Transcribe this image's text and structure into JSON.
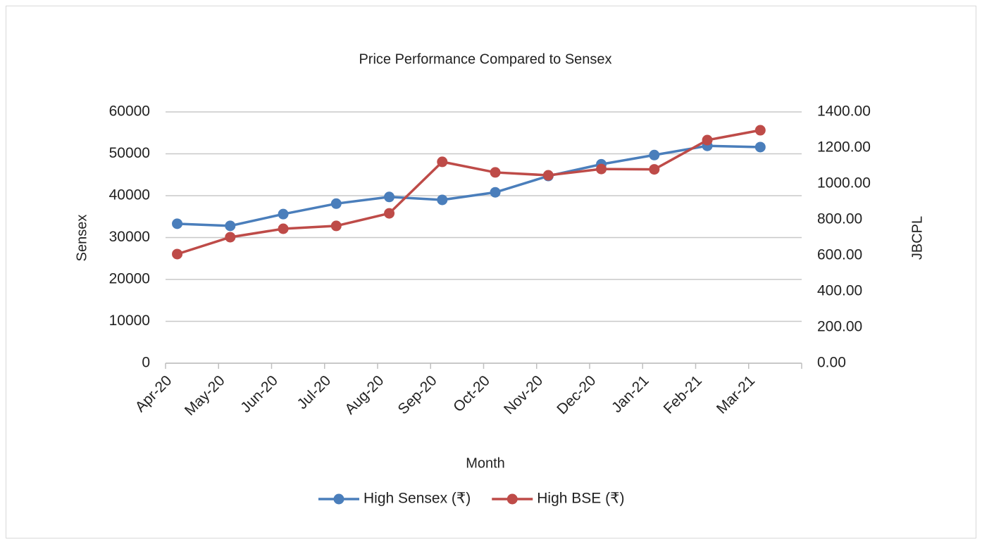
{
  "chart_data": {
    "type": "line",
    "title": "Price Performance Compared to Sensex",
    "x_label": "Month",
    "y_label": "Sensex",
    "y2_label": "JBCPL",
    "categories": [
      "Apr-20",
      "May-20",
      "Jun-20",
      "Jul-20",
      "Aug-20",
      "Sep-20",
      "Oct-20",
      "Nov-20",
      "Dec-20",
      "Jan-21",
      "Feb-21",
      "Mar-21"
    ],
    "series": [
      {
        "name": "High Sensex (₹)",
        "color": "#4a7ebb",
        "values": [
          33300,
          32800,
          35600,
          38100,
          39700,
          39000,
          40800,
          44700,
          47500,
          49700,
          51900,
          51600
        ]
      },
      {
        "name": "High BSE (₹)",
        "color": "#be4b48",
        "axis": "y2",
        "values": [
          608,
          702,
          749,
          765,
          835,
          1122,
          1063,
          1047,
          1082,
          1080,
          1243,
          1298
        ]
      }
    ],
    "ylim": [
      0,
      60000
    ],
    "yticks": [
      0,
      10000,
      20000,
      30000,
      40000,
      50000,
      60000
    ],
    "y2lim": [
      0,
      1400
    ],
    "y2ticks": [
      {
        "value": 0,
        "label": "0.00"
      },
      {
        "value": 200,
        "label": "200.00"
      },
      {
        "value": 400,
        "label": "400.00"
      },
      {
        "value": 600,
        "label": "600.00"
      },
      {
        "value": 800,
        "label": "800.00"
      },
      {
        "value": 1000,
        "label": "1000.00"
      },
      {
        "value": 1200,
        "label": "1200.00"
      },
      {
        "value": 1400,
        "label": "1400.00"
      }
    ],
    "grid": true,
    "legend": "bottom"
  }
}
